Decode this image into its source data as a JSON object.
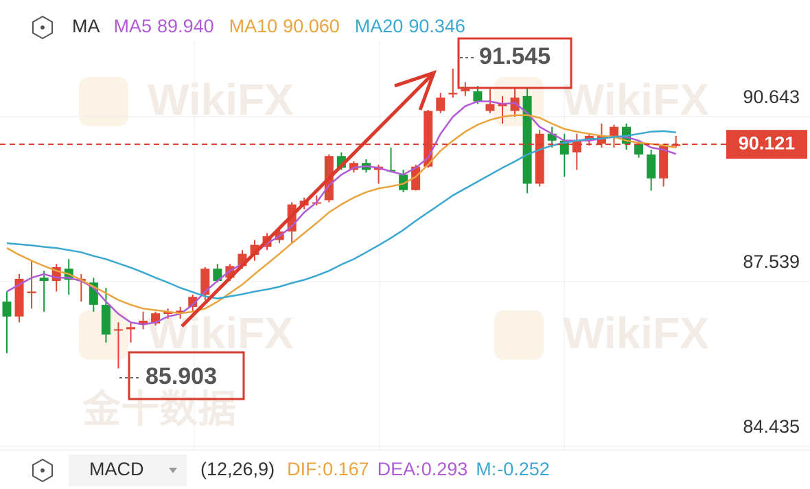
{
  "chart_data": {
    "type": "candlestick",
    "indicator": "MA",
    "up_color": "#e04535",
    "down_color": "#1a9a3a",
    "open": [
      87.16,
      86.88,
      87.32,
      87.61,
      87.55,
      87.78,
      87.55,
      87.52,
      87.1,
      86.62,
      86.64,
      86.75,
      86.75,
      86.93,
      86.95,
      87.06,
      87.29,
      87.78,
      87.61,
      87.83,
      88.04,
      88.19,
      88.32,
      88.48,
      88.97,
      89.01,
      89.07,
      89.9,
      89.64,
      89.77,
      89.64,
      89.64,
      89.55,
      89.26,
      89.7,
      90.75,
      91.06,
      91.12,
      91.12,
      90.75,
      90.84,
      90.75,
      91.03,
      89.38,
      90.32,
      90.19,
      89.97,
      90.19,
      90.13,
      90.28,
      90.45,
      90.13,
      89.93,
      89.48,
      90.09
    ],
    "high": [
      87.35,
      87.68,
      87.93,
      87.74,
      87.87,
      87.96,
      87.68,
      87.61,
      87.42,
      86.77,
      86.77,
      86.97,
      86.97,
      87.03,
      87.06,
      87.29,
      87.81,
      87.87,
      87.87,
      88.13,
      88.32,
      88.45,
      88.51,
      89.03,
      89.12,
      89.16,
      89.93,
      89.97,
      89.8,
      89.84,
      89.74,
      90.06,
      89.64,
      89.74,
      90.77,
      91.09,
      91.545,
      91.29,
      91.22,
      91.16,
      91.03,
      91.18,
      91.18,
      90.39,
      90.45,
      90.32,
      90.32,
      90.32,
      90.51,
      90.49,
      90.51,
      90.19,
      90.02,
      90.13,
      90.28
    ],
    "low": [
      86.19,
      86.77,
      87.03,
      86.97,
      87.35,
      87.29,
      87.16,
      86.97,
      86.39,
      85.903,
      86.39,
      86.64,
      86.71,
      86.84,
      86.84,
      86.97,
      87.19,
      87.52,
      87.55,
      87.78,
      87.93,
      88.13,
      88.26,
      88.26,
      88.9,
      88.97,
      89.03,
      89.64,
      89.59,
      89.59,
      89.38,
      89.59,
      89.22,
      89.25,
      89.68,
      90.71,
      91.0,
      91.03,
      90.88,
      90.71,
      90.51,
      90.64,
      89.2,
      89.33,
      90.06,
      89.51,
      89.64,
      90.1,
      90.06,
      90.06,
      90.02,
      89.87,
      89.25,
      89.33,
      90.06
    ],
    "close": [
      86.88,
      87.59,
      87.35,
      87.55,
      87.81,
      87.57,
      87.59,
      87.1,
      86.54,
      86.64,
      86.68,
      86.8,
      86.94,
      86.97,
      86.99,
      87.25,
      87.78,
      87.55,
      87.83,
      88.06,
      88.23,
      88.39,
      88.48,
      88.99,
      89.06,
      89.03,
      89.9,
      89.68,
      89.77,
      89.64,
      89.7,
      89.61,
      89.26,
      89.7,
      90.75,
      91.0,
      91.09,
      91.16,
      90.93,
      90.88,
      90.9,
      91.0,
      89.38,
      90.32,
      90.19,
      89.93,
      90.19,
      90.28,
      90.28,
      90.45,
      90.13,
      89.93,
      89.48,
      90.09,
      90.121
    ],
    "series": [
      {
        "name": "MA5",
        "color": "#b15ad6",
        "last": {
          "value": 89.94,
          "label": "89.940"
        },
        "values": [
          87.35,
          87.48,
          87.61,
          87.68,
          87.61,
          87.61,
          87.55,
          87.42,
          87.16,
          86.93,
          86.77,
          86.73,
          86.77,
          86.88,
          86.93,
          87.1,
          87.35,
          87.55,
          87.74,
          87.87,
          88.06,
          88.26,
          88.39,
          88.58,
          88.84,
          89.03,
          89.35,
          89.55,
          89.68,
          89.71,
          89.68,
          89.61,
          89.55,
          89.68,
          89.87,
          90.32,
          90.64,
          90.84,
          90.93,
          90.93,
          90.88,
          90.9,
          90.71,
          90.45,
          90.32,
          90.19,
          90.19,
          90.19,
          90.23,
          90.26,
          90.26,
          90.19,
          90.06,
          90.02,
          89.94
        ]
      },
      {
        "name": "MA10",
        "color": "#e9a43e",
        "last": {
          "value": 90.06,
          "label": "90.060"
        },
        "values": [
          88.17,
          88.04,
          87.93,
          87.83,
          87.74,
          87.68,
          87.57,
          87.44,
          87.32,
          87.19,
          87.1,
          87.03,
          87.0,
          86.97,
          86.94,
          86.97,
          87.03,
          87.16,
          87.32,
          87.48,
          87.68,
          87.87,
          88.06,
          88.26,
          88.45,
          88.64,
          88.84,
          88.99,
          89.12,
          89.22,
          89.29,
          89.33,
          89.38,
          89.51,
          89.74,
          90.0,
          90.19,
          90.36,
          90.49,
          90.58,
          90.64,
          90.67,
          90.67,
          90.62,
          90.51,
          90.41,
          90.36,
          90.32,
          90.28,
          90.26,
          90.19,
          90.15,
          90.13,
          90.1,
          90.06
        ]
      },
      {
        "name": "MA20",
        "color": "#3aa8d0",
        "last": 90.346,
        "values": [
          88.26,
          88.24,
          88.22,
          88.19,
          88.17,
          88.13,
          88.09,
          88.02,
          87.96,
          87.88,
          87.8,
          87.71,
          87.61,
          87.52,
          87.42,
          87.34,
          87.26,
          87.22,
          87.26,
          87.3,
          87.35,
          87.39,
          87.44,
          87.51,
          87.57,
          87.65,
          87.74,
          87.86,
          87.96,
          88.09,
          88.22,
          88.36,
          88.51,
          88.68,
          88.84,
          89.0,
          89.16,
          89.29,
          89.42,
          89.55,
          89.68,
          89.8,
          89.93,
          90.02,
          90.1,
          90.15,
          90.19,
          90.22,
          90.23,
          90.26,
          90.28,
          90.32,
          90.36,
          90.37,
          90.346
        ]
      }
    ],
    "ylim": [
      84.435,
      92.062
    ],
    "yticks": [
      90.643,
      87.539,
      84.435
    ],
    "grid": true,
    "current_price": 90.121,
    "high_label": 91.545,
    "low_label": 85.903,
    "watermarks": [
      "WikiFX",
      "金十数据"
    ],
    "macd": {
      "name": "MACD",
      "params": "(12,26,9)",
      "dif_label": "DIF:",
      "dif": 0.167,
      "dea_label": "DEA:",
      "dea": 0.293,
      "m_label": "M:",
      "m": -0.252
    }
  }
}
